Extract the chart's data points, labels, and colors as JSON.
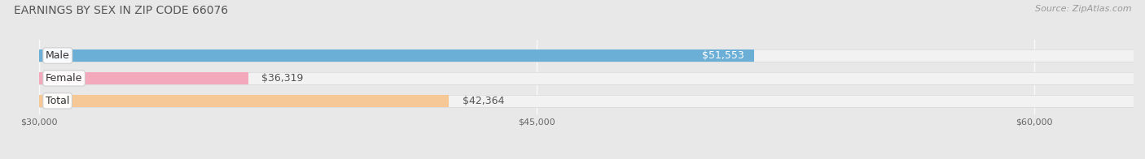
{
  "title": "EARNINGS BY SEX IN ZIP CODE 66076",
  "source_text": "Source: ZipAtlas.com",
  "categories": [
    "Male",
    "Female",
    "Total"
  ],
  "values": [
    51553,
    36319,
    42364
  ],
  "bar_colors": [
    "#6baed6",
    "#f4a8bc",
    "#f5c896"
  ],
  "value_labels": [
    "$51,553",
    "$36,319",
    "$42,364"
  ],
  "value_label_inside": [
    true,
    false,
    false
  ],
  "value_label_colors": [
    "#ffffff",
    "#555555",
    "#555555"
  ],
  "xmin": 30000,
  "xmax": 63000,
  "xticks": [
    30000,
    45000,
    60000
  ],
  "xtick_labels": [
    "$30,000",
    "$45,000",
    "$60,000"
  ],
  "background_color": "#e8e8e8",
  "bar_bg_color": "#f2f2f2",
  "bar_bg_border_color": "#d8d8d8",
  "title_fontsize": 10,
  "source_fontsize": 8,
  "label_fontsize": 9,
  "value_fontsize": 9,
  "tick_fontsize": 8,
  "label_box_border_colors": [
    "#aaaaaa",
    "#aaaaaa",
    "#aaaaaa"
  ]
}
